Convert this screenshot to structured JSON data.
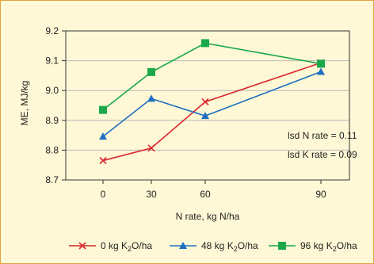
{
  "chart_data": {
    "type": "line",
    "title": "",
    "xlabel": "N rate, kg N/ha",
    "ylabel": "ME, MJ/kg",
    "x": [
      0,
      30,
      60,
      90
    ],
    "x_ticks": [
      "0",
      "30",
      "60",
      "90"
    ],
    "ylim": [
      8.7,
      9.2
    ],
    "y_ticks": [
      "8.7",
      "8.8",
      "8.9",
      "9.0",
      "9.1",
      "9.2"
    ],
    "grid": "horizontal",
    "legend_position": "bottom",
    "series": [
      {
        "name_main": "0 kg K",
        "name_sub": "2",
        "name_tail": "O/ha",
        "color": "#d9262e",
        "marker": "x",
        "values": [
          8.765,
          8.807,
          8.962,
          9.093
        ]
      },
      {
        "name_main": "48 kg K",
        "name_sub": "2",
        "name_tail": "O/ha",
        "color": "#1f6fc0",
        "marker": "triangle",
        "values": [
          8.846,
          8.973,
          8.915,
          9.063
        ]
      },
      {
        "name_main": "96 kg K",
        "name_sub": "2",
        "name_tail": "O/ha",
        "color": "#1aa84a",
        "marker": "square",
        "values": [
          8.935,
          9.062,
          9.159,
          9.09
        ]
      }
    ],
    "annotations": [
      "lsd N rate = 0.11",
      "lsd K rate = 0.09"
    ]
  }
}
